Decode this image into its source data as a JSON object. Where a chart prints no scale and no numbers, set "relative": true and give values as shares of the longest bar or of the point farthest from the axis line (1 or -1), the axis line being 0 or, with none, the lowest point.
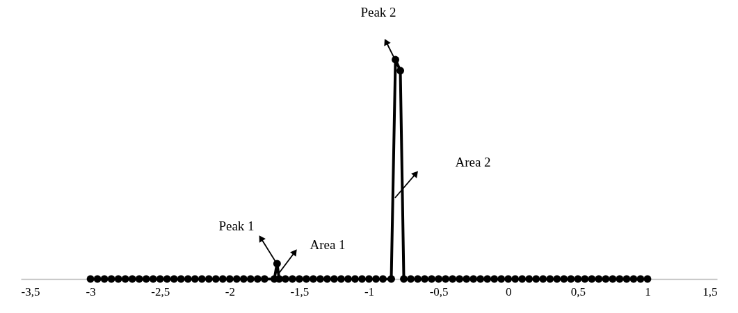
{
  "chart_data": {
    "type": "line",
    "relative": true,
    "marker": "circle",
    "line_style": "solid",
    "grid": false,
    "xlim": [
      -3.5,
      1.5
    ],
    "xticks": [
      {
        "value": -3.5,
        "label": "-3,5"
      },
      {
        "value": -3,
        "label": "-3"
      },
      {
        "value": -2.5,
        "label": "-2,5"
      },
      {
        "value": -2,
        "label": "-2"
      },
      {
        "value": -1.5,
        "label": "-1,5"
      },
      {
        "value": -1,
        "label": "-1"
      },
      {
        "value": -0.5,
        "label": "-0,5"
      },
      {
        "value": 0,
        "label": "0"
      },
      {
        "value": 0.5,
        "label": "0,5"
      },
      {
        "value": 1,
        "label": "1"
      },
      {
        "value": 1.5,
        "label": "1,5"
      }
    ],
    "series": [
      {
        "color": "#000000",
        "x": [
          -3,
          -2.95,
          -2.9,
          -2.85,
          -2.8,
          -2.75,
          -2.7,
          -2.65,
          -2.6,
          -2.55,
          -2.5,
          -2.45,
          -2.4,
          -2.35,
          -2.3,
          -2.25,
          -2.2,
          -2.15,
          -2.1,
          -2.05,
          -2,
          -1.95,
          -1.9,
          -1.85,
          -1.8,
          -1.75,
          -1.68,
          -1.66,
          -1.645,
          -1.6,
          -1.55,
          -1.5,
          -1.45,
          -1.4,
          -1.35,
          -1.3,
          -1.25,
          -1.2,
          -1.15,
          -1.1,
          -1.05,
          -1,
          -0.95,
          -0.9,
          -0.84,
          -0.81,
          -0.775,
          -0.75,
          -0.7,
          -0.65,
          -0.6,
          -0.55,
          -0.5,
          -0.45,
          -0.4,
          -0.35,
          -0.3,
          -0.25,
          -0.2,
          -0.15,
          -0.1,
          -0.05,
          0,
          0.05,
          0.1,
          0.15,
          0.2,
          0.25,
          0.3,
          0.35,
          0.4,
          0.45,
          0.5,
          0.55,
          0.6,
          0.65,
          0.7,
          0.75,
          0.8,
          0.85,
          0.9,
          0.95,
          1
        ],
        "values": [
          0,
          0,
          0,
          0,
          0,
          0,
          0,
          0,
          0,
          0,
          0,
          0,
          0,
          0,
          0,
          0,
          0,
          0,
          0,
          0,
          0,
          0,
          0,
          0,
          0,
          0,
          0,
          0.07,
          0,
          0,
          0,
          0,
          0,
          0,
          0,
          0,
          0,
          0,
          0,
          0,
          0,
          0,
          0,
          0,
          0,
          1,
          0.95,
          0,
          0,
          0,
          0,
          0,
          0,
          0,
          0,
          0,
          0,
          0,
          0,
          0,
          0,
          0,
          0,
          0,
          0,
          0,
          0,
          0,
          0,
          0,
          0,
          0,
          0,
          0,
          0,
          0,
          0,
          0,
          0,
          0,
          0,
          0,
          0
        ]
      }
    ],
    "annotations": [
      "Peak 1",
      "Area 1",
      "Peak 2",
      "Area 2"
    ]
  }
}
